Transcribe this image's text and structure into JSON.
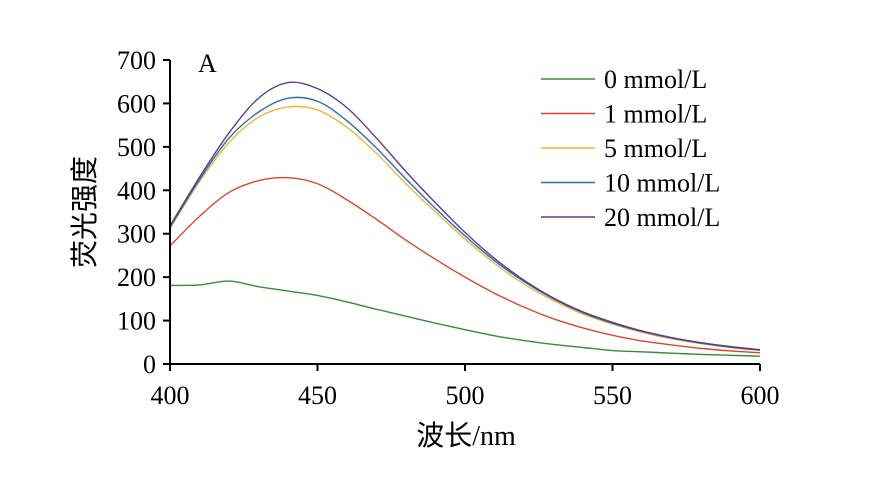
{
  "chart_data": {
    "type": "line",
    "panel_label": "A",
    "xlabel": "波长/nm",
    "ylabel": "荧光强度",
    "xlim": [
      400,
      600
    ],
    "ylim": [
      0,
      700
    ],
    "xticks": [
      400,
      450,
      500,
      550,
      600
    ],
    "yticks": [
      0,
      100,
      200,
      300,
      400,
      500,
      600,
      700
    ],
    "grid": false,
    "legend_position": "top-right",
    "x": [
      400,
      410,
      420,
      430,
      440,
      450,
      460,
      470,
      480,
      490,
      500,
      510,
      520,
      530,
      540,
      550,
      560,
      570,
      580,
      590,
      600
    ],
    "series": [
      {
        "name": "0 mmol/L",
        "color": "#3a8a3a",
        "values": [
          181,
          182,
          191,
          178,
          168,
          158,
          143,
          126,
          110,
          94,
          79,
          65,
          54,
          45,
          38,
          31,
          28,
          25,
          22,
          20,
          18
        ]
      },
      {
        "name": "1 mmol/L",
        "color": "#d9472b",
        "values": [
          272,
          340,
          395,
          422,
          429,
          415,
          378,
          333,
          285,
          241,
          200,
          163,
          131,
          104,
          83,
          66,
          53,
          44,
          36,
          30,
          26
        ]
      },
      {
        "name": "5 mmol/L",
        "color": "#f0b43c",
        "values": [
          312,
          420,
          510,
          568,
          592,
          585,
          545,
          485,
          415,
          350,
          288,
          232,
          184,
          146,
          115,
          92,
          73,
          58,
          47,
          38,
          31
        ]
      },
      {
        "name": "10 mmol/L",
        "color": "#2e6da4",
        "values": [
          315,
          425,
          520,
          580,
          612,
          605,
          560,
          497,
          426,
          358,
          295,
          238,
          190,
          150,
          118,
          94,
          75,
          60,
          48,
          39,
          32
        ]
      },
      {
        "name": "20 mmol/L",
        "color": "#5e3c8c",
        "values": [
          318,
          430,
          532,
          612,
          648,
          634,
          590,
          520,
          443,
          371,
          303,
          243,
          193,
          152,
          120,
          96,
          76,
          61,
          49,
          40,
          33
        ]
      }
    ]
  }
}
